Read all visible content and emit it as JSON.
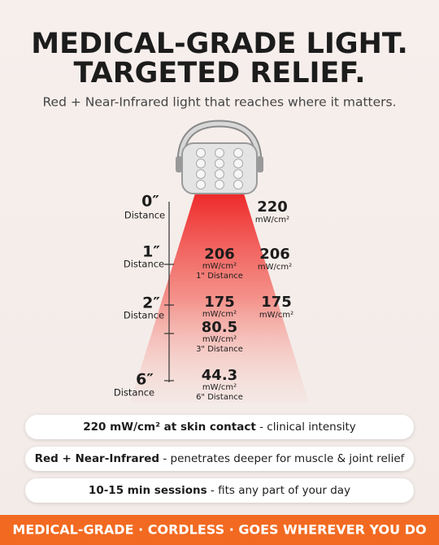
{
  "header": {
    "title": [
      "MEDICAL-GRADE LIGHT.",
      "TARGETED RELIEF."
    ],
    "subtitle": "Red + Near-Infrared light that reaches where it matters."
  },
  "distances": [
    {
      "mark": "0″",
      "label": "Distance"
    },
    {
      "mark": "1″",
      "label": "Distance"
    },
    {
      "mark": "2″",
      "label": "Distance"
    },
    {
      "mark": "6″",
      "label": "Distance"
    }
  ],
  "beam_readings": [
    {
      "value": 206,
      "unit": "mW/cm²",
      "label": "1\" Distance"
    },
    {
      "value": 175,
      "unit": "mW/cm²"
    },
    {
      "value": 80.5,
      "unit": "mW/cm²",
      "label": "3\" Distance"
    },
    {
      "value": 44.3,
      "unit": "mW/cm²",
      "label": "6\" Distance"
    }
  ],
  "side_readings": [
    {
      "value": 220,
      "unit": "mW/cm²"
    },
    {
      "value": 206,
      "unit": "mW/cm²"
    },
    {
      "value": 175,
      "unit": "mW/cm²"
    }
  ],
  "features": [
    {
      "bold": "220 mW/cm² at skin contact",
      "text": " - clinical intensity"
    },
    {
      "bold": "Red + Near-Infrared",
      "text": " - penetrates deeper for muscle & joint relief"
    },
    {
      "bold": "10-15 min sessions",
      "text": " - fits any part of your day"
    }
  ],
  "footer": "MEDICAL-GRADE · CORDLESS · GOES WHEREVER YOU DO"
}
